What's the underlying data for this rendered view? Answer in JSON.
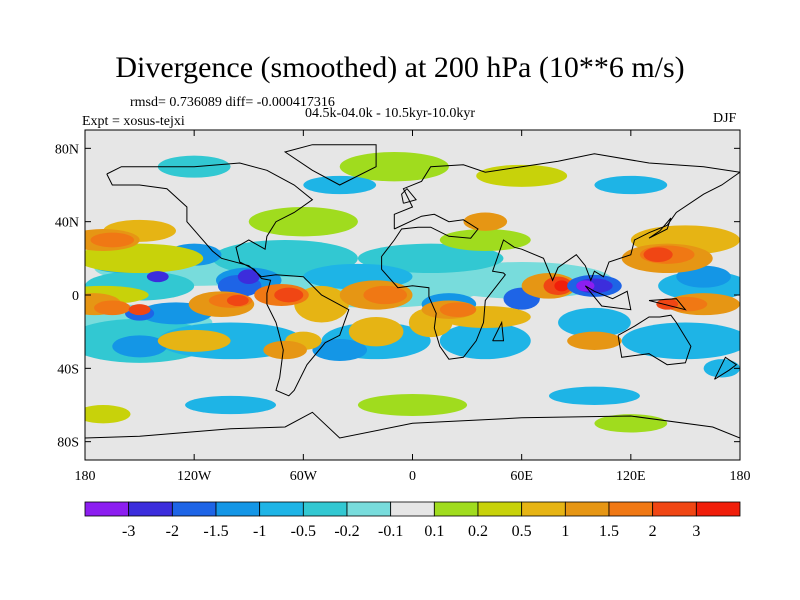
{
  "title": "Divergence (smoothed) at 200 hPa (10**6 m/s)",
  "stats": "rmsd= 0.736089 diff= -0.000417316",
  "period": "04.5k-04.0k - 10.5kyr-10.0kyr",
  "experiment": "Expt = xosus-tejxi",
  "season": "DJF",
  "map": {
    "projection": "cylindrical-equidistant",
    "lon_range": [
      -180,
      180
    ],
    "lat_range": [
      -90,
      90
    ],
    "lon_ticks": [
      {
        "value": -180,
        "label": "180"
      },
      {
        "value": -120,
        "label": "120W"
      },
      {
        "value": -60,
        "label": "60W"
      },
      {
        "value": 0,
        "label": "0"
      },
      {
        "value": 60,
        "label": "60E"
      },
      {
        "value": 120,
        "label": "120E"
      },
      {
        "value": 180,
        "label": "180"
      }
    ],
    "lat_ticks": [
      {
        "value": 80,
        "label": "80N"
      },
      {
        "value": 40,
        "label": "40N"
      },
      {
        "value": 0,
        "label": "0"
      },
      {
        "value": -40,
        "label": "40S"
      },
      {
        "value": -80,
        "label": "80S"
      }
    ]
  },
  "colorbar": {
    "colors": [
      "#8c1ef0",
      "#3c2ddc",
      "#1e64e6",
      "#1496e6",
      "#1eb4e6",
      "#32c8d2",
      "#78dcdc",
      "#e6e6e6",
      "#a0dc1e",
      "#c8d20a",
      "#e6b414",
      "#e69614",
      "#f07814",
      "#f04614",
      "#f01e0a"
    ],
    "labels": [
      "-3",
      "-2",
      "-1.5",
      "-1",
      "-0.5",
      "-0.2",
      "-0.1",
      "0.1",
      "0.2",
      "0.5",
      "1",
      "1.5",
      "2",
      "3"
    ]
  }
}
